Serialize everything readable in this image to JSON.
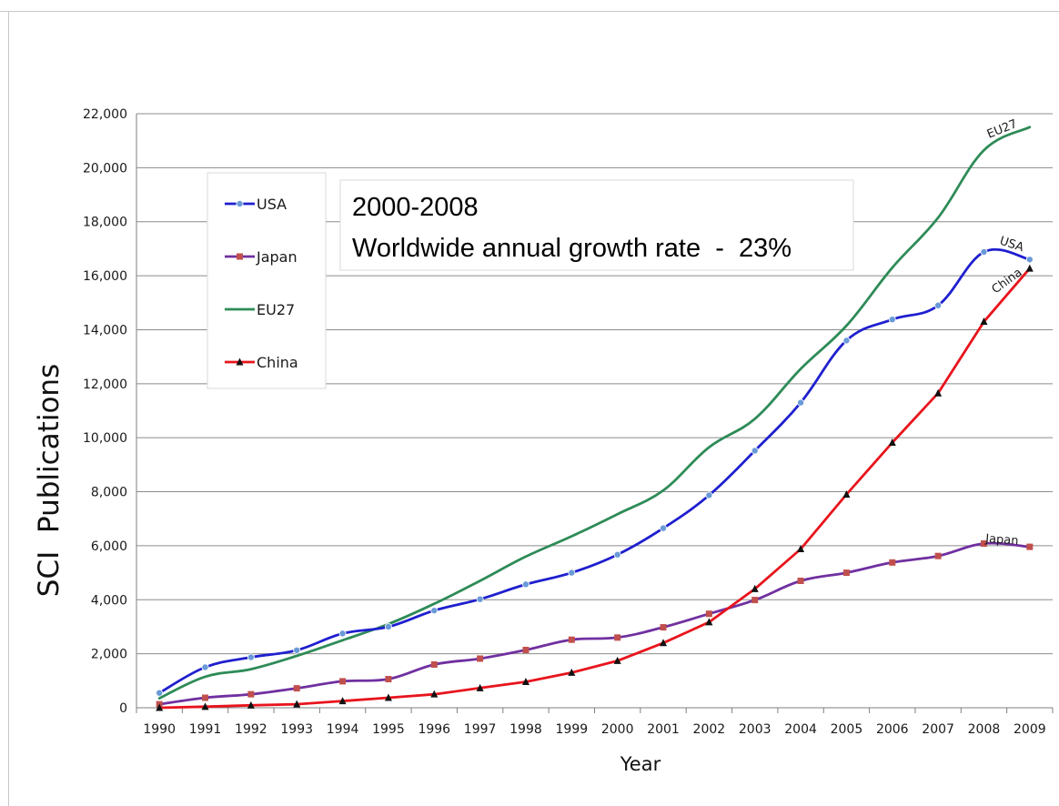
{
  "chart_data": {
    "type": "line",
    "title": "",
    "xlabel": "Year",
    "ylabel": "SCI  Publications",
    "ylim": [
      0,
      22000
    ],
    "yticks": [
      "0",
      "2,000",
      "4,000",
      "6,000",
      "8,000",
      "10,000",
      "12,000",
      "14,000",
      "16,000",
      "18,000",
      "20,000",
      "22,000"
    ],
    "ytick_values": [
      0,
      2000,
      4000,
      6000,
      8000,
      10000,
      12000,
      14000,
      16000,
      18000,
      20000,
      22000
    ],
    "x": [
      "1990",
      "1991",
      "1992",
      "1993",
      "1994",
      "1995",
      "1996",
      "1997",
      "1998",
      "1999",
      "2000",
      "2001",
      "2002",
      "2003",
      "2004",
      "2005",
      "2006",
      "2007",
      "2008",
      "2009"
    ],
    "grid": "horizontal",
    "legend_position": "top-left",
    "series": [
      {
        "name": "USA",
        "color": "#1f1fcf",
        "marker": "circle",
        "marker_color": "#6a9ad8",
        "end_label": "USA",
        "values": [
          550,
          1500,
          1870,
          2130,
          2750,
          3000,
          3600,
          4020,
          4570,
          5000,
          5670,
          6650,
          7870,
          9520,
          11300,
          13600,
          14380,
          14900,
          16880,
          16600
        ]
      },
      {
        "name": "Japan",
        "color": "#7030a0",
        "marker": "square",
        "marker_color": "#c0504d",
        "end_label": "Japan",
        "values": [
          130,
          370,
          500,
          720,
          980,
          1060,
          1600,
          1820,
          2140,
          2520,
          2600,
          2980,
          3480,
          3990,
          4700,
          5000,
          5380,
          5620,
          6080,
          5960
        ]
      },
      {
        "name": "EU27",
        "color": "#2e8b57",
        "marker": "none",
        "marker_color": "#2e8b57",
        "end_label": "EU27",
        "values": [
          350,
          1150,
          1430,
          1920,
          2500,
          3100,
          3850,
          4700,
          5600,
          6350,
          7170,
          8050,
          9650,
          10700,
          12550,
          14150,
          16300,
          18150,
          20650,
          21500
        ]
      },
      {
        "name": "China",
        "color": "#e8141c",
        "marker": "triangle",
        "marker_color": "#111111",
        "end_label": "China",
        "values": [
          0,
          40,
          90,
          130,
          250,
          370,
          500,
          730,
          960,
          1300,
          1740,
          2400,
          3170,
          4400,
          5880,
          7900,
          9820,
          11650,
          14300,
          16270
        ]
      }
    ],
    "annotation": {
      "line1": "2000-2008",
      "line2": "Worldwide annual growth rate  -  23%"
    }
  }
}
